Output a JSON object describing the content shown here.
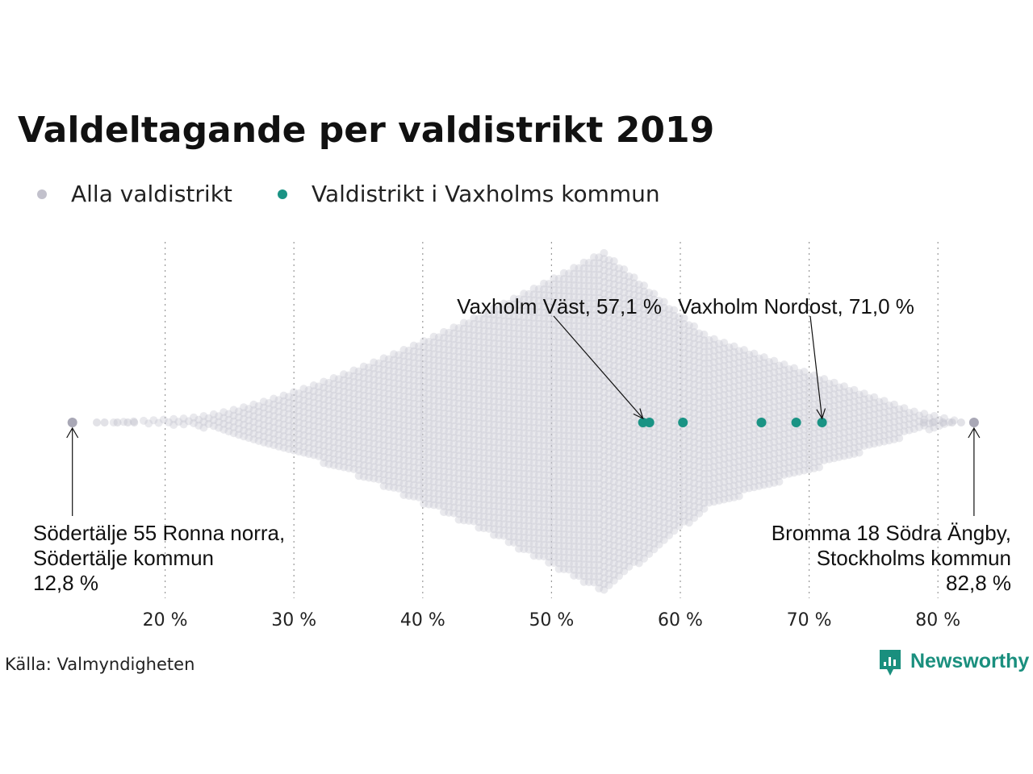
{
  "chart_data": {
    "type": "scatter",
    "title": "Valdeltagande per valdistrikt 2019",
    "legend": [
      {
        "label": "Alla valdistrikt",
        "color": "#c2c1cc"
      },
      {
        "label": "Valdistrikt i Vaxholms kommun",
        "color": "#1a9384"
      }
    ],
    "legend_position": "top-left",
    "xlim": [
      10,
      85
    ],
    "x_ticks": [
      20,
      30,
      40,
      50,
      60,
      70,
      80
    ],
    "x_tick_labels": [
      "20 %",
      "30 %",
      "40 %",
      "50 %",
      "60 %",
      "70 %",
      "80 %"
    ],
    "grid": "vertical-dotted",
    "distribution_peak": 54,
    "series": [
      {
        "name": "Valdistrikt i Vaxholms kommun",
        "values": [
          57.1,
          57.6,
          60.2,
          66.3,
          69.0,
          71.0
        ]
      }
    ],
    "extremes": [
      {
        "value": 12.8,
        "lines": [
          "Södertälje 55 Ronna norra,",
          "Södertälje kommun",
          "12,8 %"
        ]
      },
      {
        "value": 82.8,
        "lines": [
          "Bromma 18 Södra Ängby,",
          "Stockholms kommun",
          "82,8 %"
        ]
      }
    ],
    "annotations": [
      {
        "value": 57.1,
        "text": "Vaxholm Väst, 57,1 %"
      },
      {
        "value": 71.0,
        "text": "Vaxholm Nordost, 71,0 %"
      }
    ]
  },
  "source": "Källa: Valmyndigheten",
  "brand": "Newsworthy"
}
